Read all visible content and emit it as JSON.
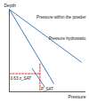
{
  "chart_data": {
    "type": "line",
    "x_label": "Pressure",
    "y_label": "Depth",
    "xlim": [
      0,
      1
    ],
    "ylim": [
      1,
      0
    ],
    "xticks": [],
    "yticks": [],
    "tick_labels": false,
    "grid": false,
    "series": [
      {
        "name": "Pressure within the powder",
        "color": "#3b82c4",
        "line_style": "solid",
        "x": [
          0,
          0.58
        ],
        "values": [
          0,
          0.9
        ]
      },
      {
        "name": "Pressure hydrostatic",
        "color": "#3b82c4",
        "line_style": "solid",
        "x": [
          0,
          0.94
        ],
        "values": [
          0,
          0.64
        ]
      },
      {
        "color": "#3b82c4",
        "line_style": "solid",
        "x": [
          0.3,
          0.46
        ],
        "values": [
          0.72,
          0.94
        ]
      },
      {
        "color": "#e03030",
        "line_style": "dashed",
        "x": [
          0,
          0.4
        ],
        "values": [
          0.78,
          0.78
        ]
      },
      {
        "color": "#e03030",
        "line_style": "dashed",
        "x": [
          0.4,
          0.4
        ],
        "values": [
          0.66,
          1
        ]
      }
    ],
    "annotations": [
      {
        "text": "Pressure within the powder",
        "x": 1,
        "y": 0.1
      },
      {
        "text": "Pressure hydrostatic",
        "x": 1,
        "y": 0.36
      },
      {
        "text": "0.63 z_SAT",
        "x": 0,
        "y": 0.84
      },
      {
        "text": "P_SAT",
        "x": 0.4,
        "y": 0.97
      }
    ]
  }
}
